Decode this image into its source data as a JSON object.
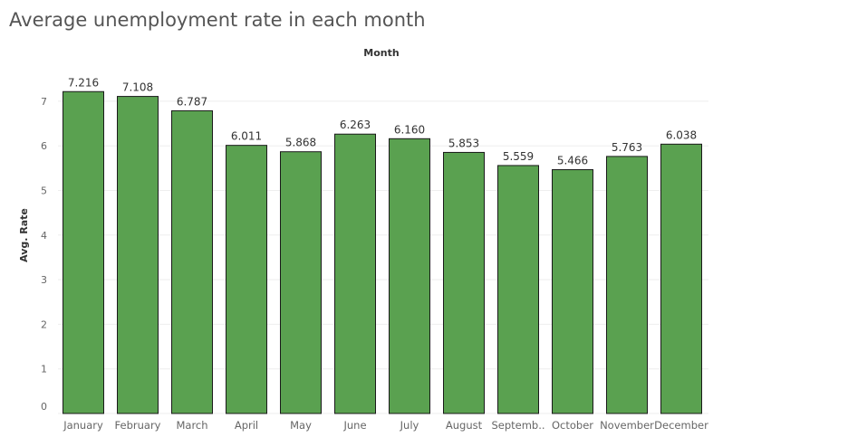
{
  "chart_data": {
    "type": "bar",
    "title": "Average unemployment rate in each month",
    "xlabel": "Month",
    "ylabel": "Avg. Rate",
    "ylim": [
      0,
      7.5
    ],
    "yticks": [
      0,
      1,
      2,
      3,
      4,
      5,
      6,
      7
    ],
    "grid": true,
    "categories": [
      "January",
      "February",
      "March",
      "April",
      "May",
      "June",
      "July",
      "August",
      "Septemb..",
      "October",
      "November",
      "December"
    ],
    "values": [
      7.216,
      7.108,
      6.787,
      6.011,
      5.868,
      6.263,
      6.16,
      5.853,
      5.559,
      5.466,
      5.763,
      6.038
    ],
    "value_labels": [
      "7.216",
      "7.108",
      "6.787",
      "6.011",
      "5.868",
      "6.263",
      "6.160",
      "5.853",
      "5.559",
      "5.466",
      "5.763",
      "6.038"
    ],
    "bar_color": "#5aa150",
    "bar_border_color": "#1a1a1a",
    "grid_color": "#eeeeee"
  }
}
